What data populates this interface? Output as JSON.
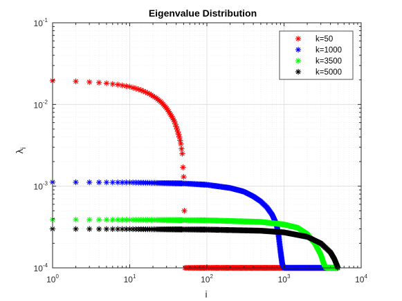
{
  "chart_data": {
    "type": "scatter",
    "title": "Eigenvalue Distribution",
    "xlabel": "i",
    "ylabel": "λ",
    "ylabel_subscript": "i",
    "xscale": "log",
    "yscale": "log",
    "xlim": [
      1,
      10000
    ],
    "ylim": [
      0.0001,
      0.1
    ],
    "grid": true,
    "minor_grid": true,
    "legend_position": "top-right",
    "marker": "*",
    "x_ticks": [
      {
        "base": "10",
        "exp": "0"
      },
      {
        "base": "10",
        "exp": "1"
      },
      {
        "base": "10",
        "exp": "2"
      },
      {
        "base": "10",
        "exp": "3"
      },
      {
        "base": "10",
        "exp": "4"
      }
    ],
    "y_ticks": [
      {
        "base": "10",
        "exp": "-4"
      },
      {
        "base": "10",
        "exp": "-3"
      },
      {
        "base": "10",
        "exp": "-2"
      },
      {
        "base": "10",
        "exp": "-1"
      }
    ],
    "series": [
      {
        "name": "k=50",
        "color": "#ff0000",
        "n": 5000,
        "x_decay_end": 50,
        "values": [
          [
            1,
            0.0195
          ],
          [
            2,
            0.0192
          ],
          [
            3,
            0.0188
          ],
          [
            4,
            0.0185
          ],
          [
            5,
            0.0182
          ],
          [
            7,
            0.0175
          ],
          [
            10,
            0.0165
          ],
          [
            14,
            0.015
          ],
          [
            18,
            0.0135
          ],
          [
            22,
            0.012
          ],
          [
            26,
            0.0105
          ],
          [
            30,
            0.009
          ],
          [
            34,
            0.0075
          ],
          [
            38,
            0.0062
          ],
          [
            41,
            0.005
          ],
          [
            44,
            0.004
          ],
          [
            46,
            0.0033
          ],
          [
            48,
            0.0025
          ],
          [
            49,
            0.0017
          ],
          [
            50,
            0.0013
          ],
          [
            51,
            0.0005
          ],
          [
            52,
            0.0001
          ],
          [
            5000,
            0.0001
          ]
        ]
      },
      {
        "name": "k=1000",
        "color": "#0000ff",
        "n": 5000,
        "x_decay_end": 1000,
        "values": [
          [
            1,
            0.00112
          ],
          [
            10,
            0.00111
          ],
          [
            50,
            0.00108
          ],
          [
            100,
            0.00104
          ],
          [
            200,
            0.00095
          ],
          [
            300,
            0.00086
          ],
          [
            400,
            0.00075
          ],
          [
            500,
            0.00065
          ],
          [
            600,
            0.00055
          ],
          [
            700,
            0.00045
          ],
          [
            800,
            0.00034
          ],
          [
            850,
            0.00025
          ],
          [
            900,
            0.00016
          ],
          [
            950,
            0.00011
          ],
          [
            1000,
            0.0001
          ],
          [
            5000,
            0.0001
          ]
        ]
      },
      {
        "name": "k=3500",
        "color": "#00ff00",
        "n": 5000,
        "x_decay_end": 3500,
        "values": [
          [
            1,
            0.00039
          ],
          [
            10,
            0.000388
          ],
          [
            100,
            0.000382
          ],
          [
            500,
            0.000365
          ],
          [
            1000,
            0.00034
          ],
          [
            1500,
            0.00031
          ],
          [
            2000,
            0.00026
          ],
          [
            2500,
            0.0002
          ],
          [
            3000,
            0.000145
          ],
          [
            3300,
            0.00011
          ],
          [
            3500,
            0.0001
          ],
          [
            5000,
            0.0001
          ]
        ]
      },
      {
        "name": "k=5000",
        "color": "#000000",
        "n": 5000,
        "x_decay_end": 5000,
        "values": [
          [
            1,
            0.0003
          ],
          [
            10,
            0.000298
          ],
          [
            100,
            0.000294
          ],
          [
            500,
            0.000285
          ],
          [
            1000,
            0.000272
          ],
          [
            2000,
            0.00024
          ],
          [
            3000,
            0.0002
          ],
          [
            4000,
            0.000155
          ],
          [
            4500,
            0.000128
          ],
          [
            5000,
            0.0001
          ]
        ]
      }
    ]
  }
}
